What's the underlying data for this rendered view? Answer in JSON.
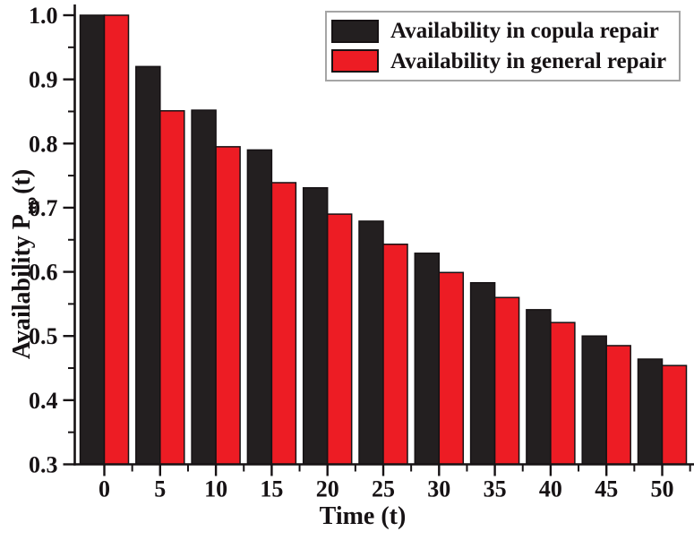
{
  "chart_data": {
    "type": "bar",
    "title": "",
    "xlabel": "Time (t)",
    "ylabel": "Availability P_up(t)",
    "ylabel_prefix": "Availability P",
    "ylabel_sub": "up",
    "ylabel_suffix": "(t)",
    "categories": [
      0,
      5,
      10,
      15,
      20,
      25,
      30,
      35,
      40,
      45,
      50
    ],
    "series": [
      {
        "name": "Availability in copula repair",
        "color": "#231f20",
        "values": [
          1.0,
          0.92,
          0.852,
          0.79,
          0.731,
          0.679,
          0.629,
          0.583,
          0.541,
          0.5,
          0.464
        ]
      },
      {
        "name": "Availability in general repair",
        "color": "#ed1c24",
        "values": [
          1.0,
          0.851,
          0.795,
          0.739,
          0.69,
          0.643,
          0.599,
          0.56,
          0.521,
          0.485,
          0.454
        ]
      }
    ],
    "ylim": [
      0.3,
      1.0
    ],
    "yticks": [
      0.3,
      0.4,
      0.5,
      0.6,
      0.7,
      0.8,
      0.9,
      1.0
    ],
    "ytick_labels": [
      "0.3",
      "0.4",
      "0.5",
      "0.6",
      "0.7",
      "0.8",
      "0.9",
      "1.0"
    ],
    "xticks": [
      0,
      5,
      10,
      15,
      20,
      25,
      30,
      35,
      40,
      45,
      50
    ],
    "minor_y_step": 0.05,
    "minor_x_step": 2.5,
    "grid": false,
    "legend_position": "top-right",
    "axis_color": "#161214",
    "bar_outline_color": "#161214",
    "legend_border_color": "#a5a5a5",
    "background": "#ffffff"
  }
}
